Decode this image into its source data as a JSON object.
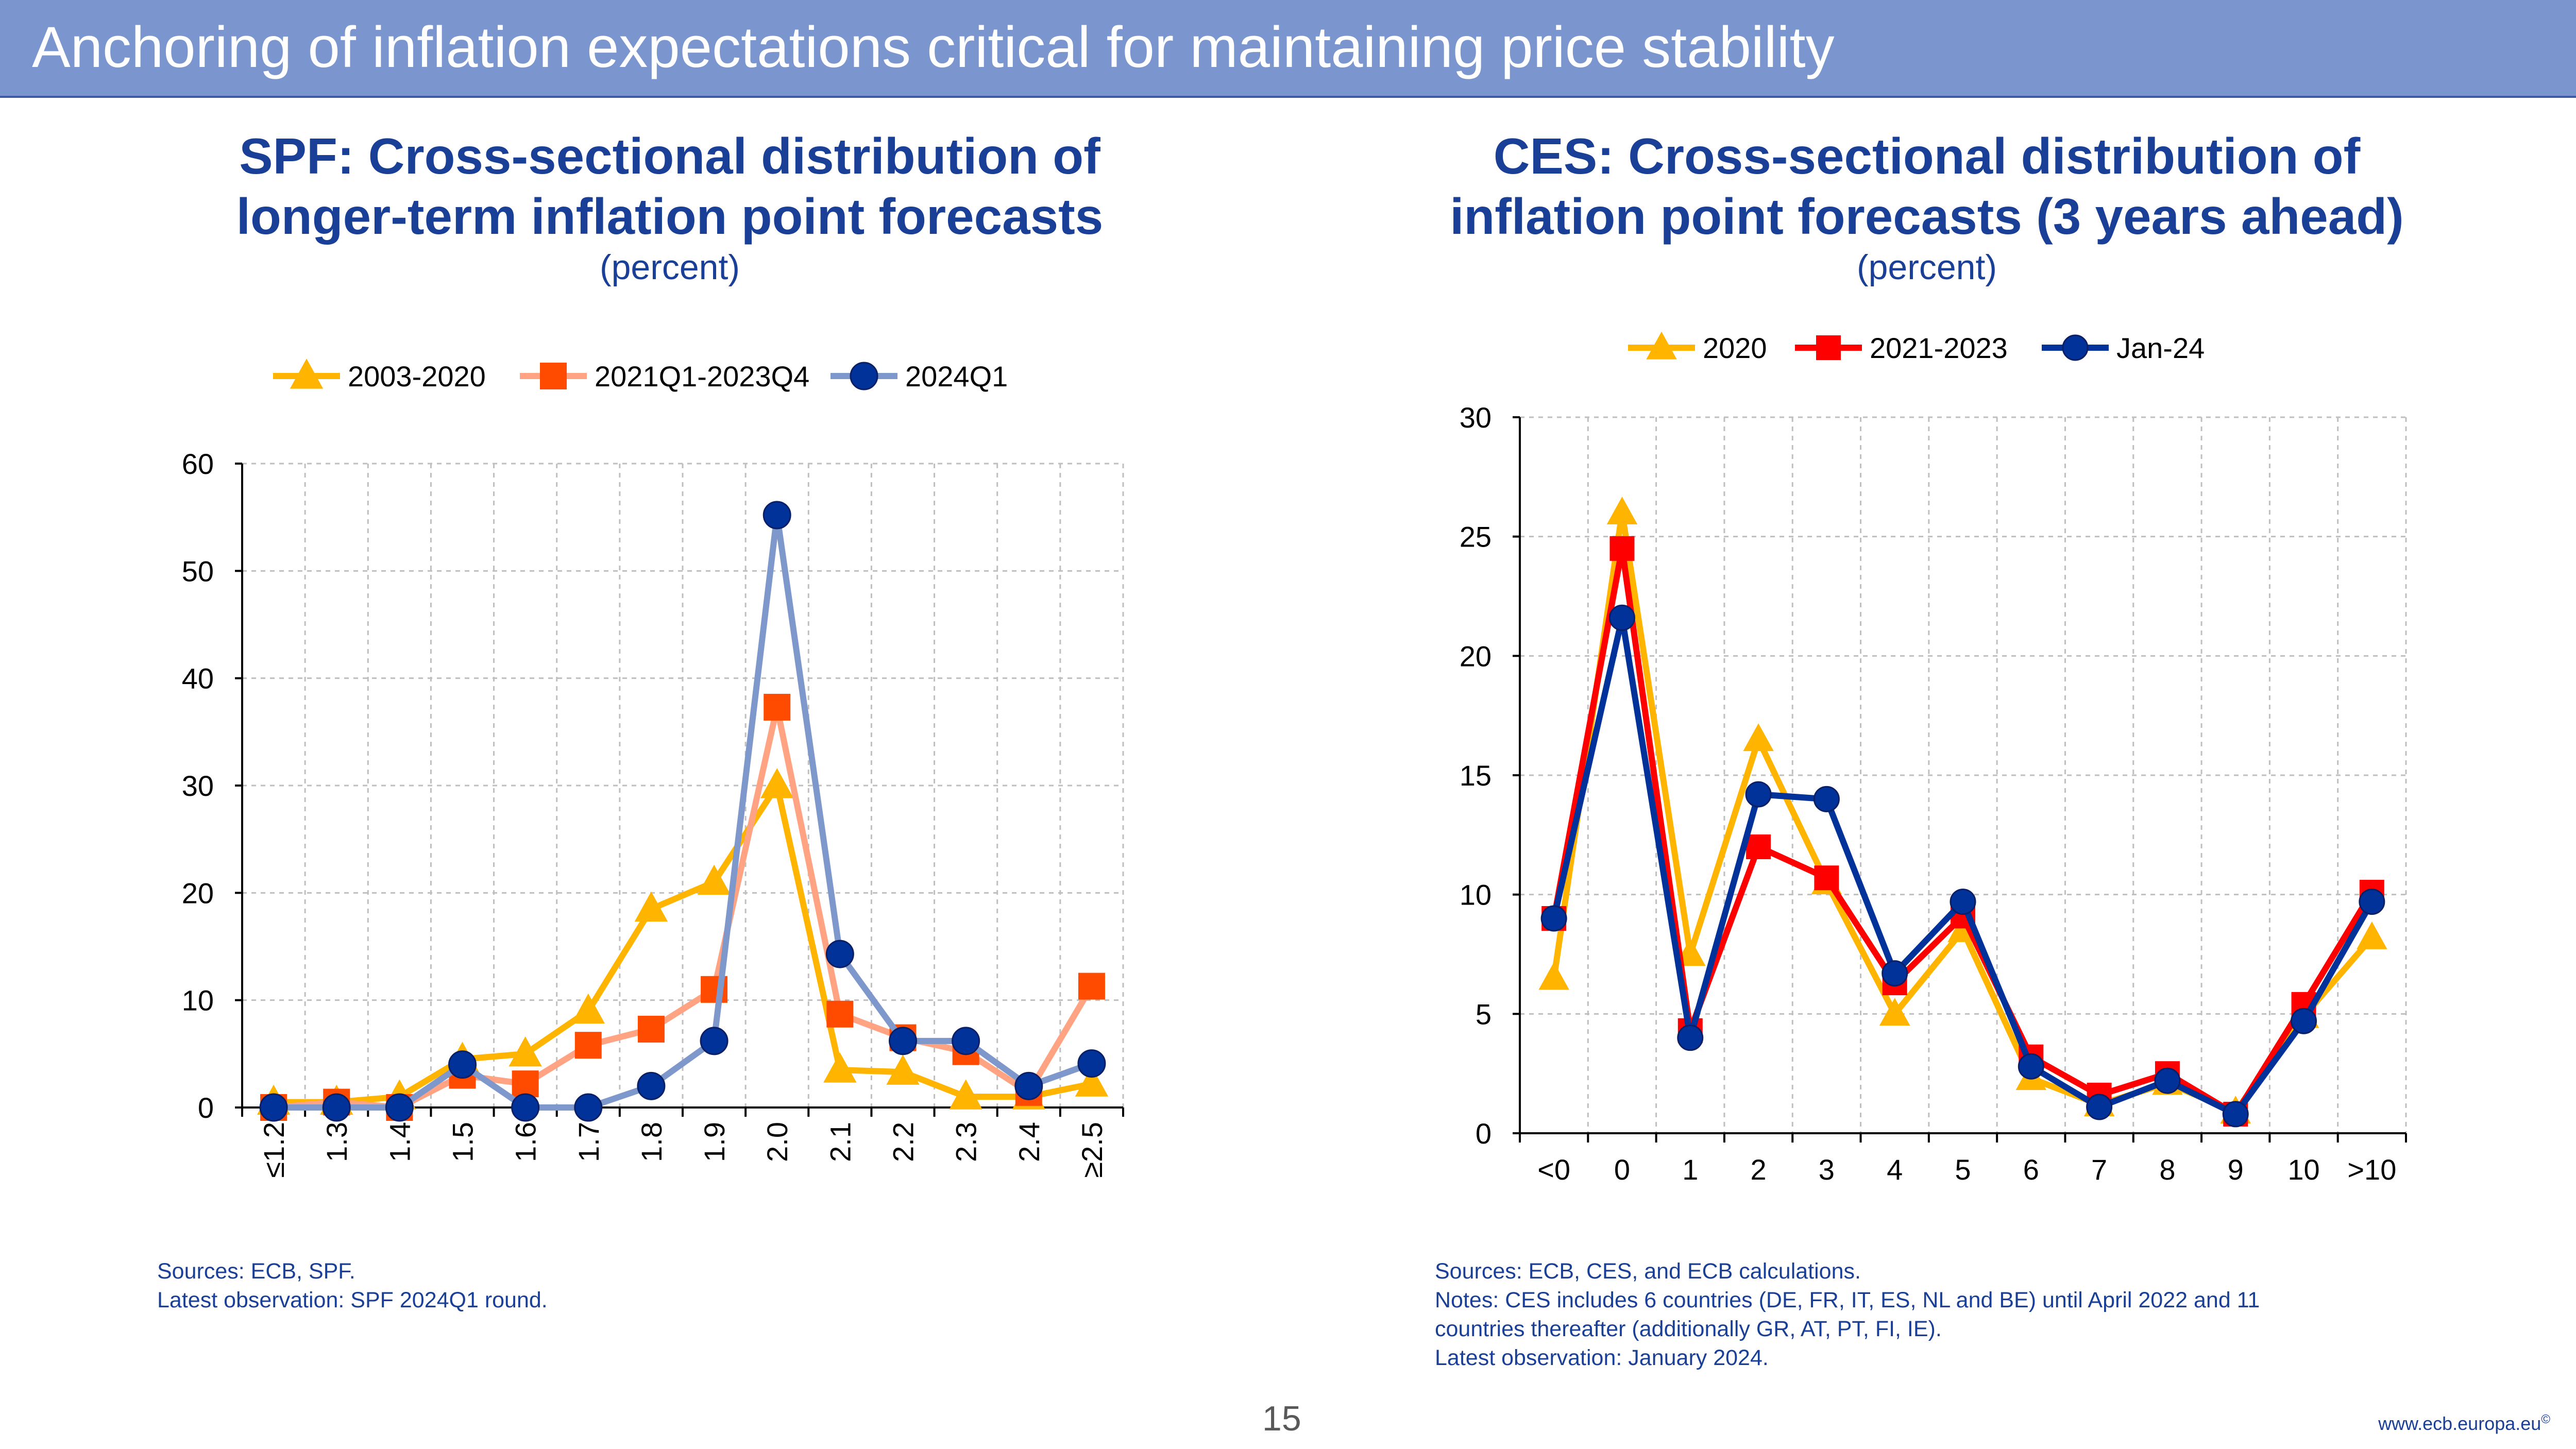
{
  "header": {
    "title": "Anchoring of inflation expectations critical for maintaining price stability"
  },
  "left_chart": {
    "title_line1": "SPF: Cross-sectional distribution of",
    "title_line2": "longer-term inflation point forecasts",
    "subtitle": "(percent)",
    "notes": [
      "Sources: ECB, SPF.",
      "Latest observation: SPF 2024Q1 round."
    ]
  },
  "right_chart": {
    "title_line1": "CES: Cross-sectional distribution of",
    "title_line2": "inflation point forecasts (3 years ahead)",
    "subtitle": "(percent)",
    "notes": [
      "Sources: ECB, CES, and ECB calculations.",
      "Notes: CES includes 6 countries (DE, FR, IT, ES, NL and BE) until April 2022 and 11",
      "countries thereafter (additionally GR, AT, PT, FI, IE).",
      "Latest observation: January 2024."
    ]
  },
  "footer": {
    "page_number": "15",
    "url": "www.ecb.europa.eu",
    "copyright": "©"
  },
  "chart_data": [
    {
      "type": "line",
      "categories": [
        "≤1.2",
        "1.3",
        "1.4",
        "1.5",
        "1.6",
        "1.7",
        "1.8",
        "1.9",
        "2.0",
        "2.1",
        "2.2",
        "2.3",
        "2.4",
        "≥2.5"
      ],
      "ylim": [
        0,
        60
      ],
      "yticks": [
        0,
        10,
        20,
        30,
        40,
        50,
        60
      ],
      "grid": true,
      "legend_position": "top",
      "series": [
        {
          "name": "2003-2020",
          "color": "#ffb400",
          "line_color": "#ffb400",
          "marker": "triangle",
          "values": [
            0.5,
            0.5,
            1,
            4.5,
            5,
            9,
            18.5,
            21,
            30,
            3.5,
            3.3,
            1,
            1,
            2.2
          ]
        },
        {
          "name": "2021Q1-2023Q4",
          "color": "#ff4b00",
          "line_color": "#ffa382",
          "marker": "square",
          "values": [
            0,
            0.5,
            0,
            3,
            2.2,
            5.8,
            7.3,
            11,
            37.3,
            8.7,
            6.5,
            5.2,
            1.4,
            11.3
          ]
        },
        {
          "name": "2024Q1",
          "color": "#003299",
          "line_color": "#7f98cb",
          "marker": "circle",
          "values": [
            0,
            0,
            0,
            4,
            0,
            0,
            2,
            6.2,
            55.2,
            14.3,
            6.2,
            6.2,
            2,
            4.1
          ]
        }
      ]
    },
    {
      "type": "line",
      "categories": [
        "<0",
        "0",
        "1",
        "2",
        "3",
        "4",
        "5",
        "6",
        "7",
        "8",
        "9",
        "10",
        ">10"
      ],
      "ylim": [
        0,
        30
      ],
      "yticks": [
        0,
        5,
        10,
        15,
        20,
        25,
        30
      ],
      "grid": true,
      "legend_position": "top",
      "series": [
        {
          "name": "2020",
          "color": "#ffb400",
          "line_color": "#ffb400",
          "marker": "triangle",
          "values": [
            6.5,
            26,
            7.5,
            16.5,
            10.5,
            5,
            8.5,
            2.3,
            1.2,
            2.1,
            0.9,
            4.9,
            8.2
          ]
        },
        {
          "name": "2021-2023",
          "color": "#ff0000",
          "line_color": "#ff0000",
          "marker": "square",
          "values": [
            9,
            24.5,
            4.3,
            12,
            10.7,
            6.3,
            9.1,
            3.2,
            1.6,
            2.5,
            0.8,
            5.4,
            10.1
          ]
        },
        {
          "name": "Jan-24",
          "color": "#003299",
          "line_color": "#003299",
          "marker": "circle",
          "values": [
            9,
            21.6,
            4,
            14.2,
            14,
            6.7,
            9.7,
            2.8,
            1.1,
            2.2,
            0.8,
            4.7,
            9.7
          ]
        }
      ]
    }
  ]
}
